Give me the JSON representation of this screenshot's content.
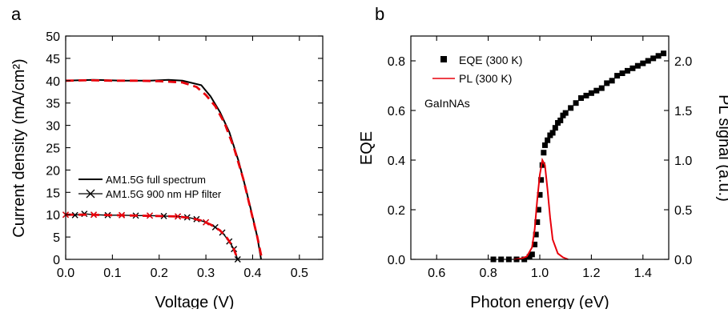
{
  "chart_data": [
    {
      "panel": "a",
      "type": "line",
      "xlabel": "Voltage (V)",
      "ylabel": "Current density (mA/cm²)",
      "xlim": [
        0,
        0.55
      ],
      "ylim": [
        0,
        50
      ],
      "xticks": [
        "0.0",
        "0.1",
        "0.2",
        "0.3",
        "0.4",
        "0.5"
      ],
      "yticks": [
        "0",
        "5",
        "10",
        "15",
        "20",
        "25",
        "30",
        "35",
        "40",
        "45",
        "50"
      ],
      "legend_position": "middle-left",
      "series": [
        {
          "name": "AM1.5G full spectrum",
          "color": "#000000",
          "style": "solid",
          "points": [
            [
              0.0,
              40.0
            ],
            [
              0.06,
              40.2
            ],
            [
              0.12,
              40.0
            ],
            [
              0.18,
              40.0
            ],
            [
              0.22,
              40.2
            ],
            [
              0.25,
              40.0
            ],
            [
              0.29,
              39.0
            ],
            [
              0.31,
              36.5
            ],
            [
              0.33,
              33.0
            ],
            [
              0.35,
              28.5
            ],
            [
              0.37,
              22.0
            ],
            [
              0.385,
              16.0
            ],
            [
              0.4,
              9.5
            ],
            [
              0.41,
              5.0
            ],
            [
              0.418,
              0.0
            ]
          ]
        },
        {
          "name": "AM1.5G 900 nm HP filter",
          "color": "#000000",
          "marker": "x",
          "points": [
            [
              0.0,
              10.0
            ],
            [
              0.02,
              9.9
            ],
            [
              0.04,
              10.2
            ],
            [
              0.06,
              10.0
            ],
            [
              0.09,
              9.9
            ],
            [
              0.12,
              9.9
            ],
            [
              0.15,
              9.8
            ],
            [
              0.18,
              9.8
            ],
            [
              0.21,
              9.7
            ],
            [
              0.24,
              9.6
            ],
            [
              0.26,
              9.4
            ],
            [
              0.28,
              9.0
            ],
            [
              0.3,
              8.3
            ],
            [
              0.32,
              7.2
            ],
            [
              0.335,
              6.0
            ],
            [
              0.35,
              4.0
            ],
            [
              0.36,
              2.3
            ],
            [
              0.368,
              0.0
            ]
          ]
        },
        {
          "color": "#e8000b",
          "style": "dashed",
          "points": [
            [
              0.0,
              40.0
            ],
            [
              0.05,
              40.1
            ],
            [
              0.1,
              40.0
            ],
            [
              0.15,
              40.0
            ],
            [
              0.2,
              39.9
            ],
            [
              0.25,
              39.6
            ],
            [
              0.28,
              38.6
            ],
            [
              0.3,
              36.8
            ],
            [
              0.32,
              34.3
            ],
            [
              0.34,
              30.5
            ],
            [
              0.36,
              25.0
            ],
            [
              0.38,
              18.0
            ],
            [
              0.395,
              11.5
            ],
            [
              0.41,
              5.0
            ],
            [
              0.42,
              0.0
            ]
          ]
        },
        {
          "color": "#e8000b",
          "style": "dashed",
          "points": [
            [
              0.0,
              10.0
            ],
            [
              0.05,
              10.0
            ],
            [
              0.1,
              9.9
            ],
            [
              0.15,
              9.8
            ],
            [
              0.2,
              9.7
            ],
            [
              0.24,
              9.6
            ],
            [
              0.27,
              9.2
            ],
            [
              0.29,
              8.7
            ],
            [
              0.31,
              7.8
            ],
            [
              0.33,
              6.5
            ],
            [
              0.345,
              4.8
            ],
            [
              0.358,
              2.8
            ],
            [
              0.368,
              0.0
            ]
          ]
        },
        {
          "color": "#e8000b",
          "marker": "x",
          "points": [
            [
              0.0,
              10.0
            ],
            [
              0.06,
              10.0
            ],
            [
              0.12,
              9.9
            ],
            [
              0.18,
              9.8
            ],
            [
              0.24,
              9.6
            ],
            [
              0.3,
              8.3
            ]
          ]
        }
      ]
    },
    {
      "panel": "b",
      "type": "scatter",
      "xlabel": "Photon energy (eV)",
      "ylabel": "EQE",
      "y2label": "PL signal (a.u.)",
      "xlim": [
        0.5,
        1.5
      ],
      "ylim": [
        0,
        0.9
      ],
      "y2lim": [
        0,
        2.25
      ],
      "xticks": [
        "0.6",
        "0.8",
        "1.0",
        "1.2",
        "1.4"
      ],
      "yticks": [
        "0.0",
        "0.2",
        "0.4",
        "0.6",
        "0.8"
      ],
      "y2ticks": [
        "0.0",
        "0.5",
        "1.0",
        "1.5",
        "2.0"
      ],
      "annotation": "GaInNAs",
      "legend_position": "top-left",
      "series": [
        {
          "name": "EQE (300 K)",
          "color": "#000000",
          "marker": "square",
          "axis": "left",
          "points": [
            [
              0.82,
              0.0
            ],
            [
              0.85,
              0.0
            ],
            [
              0.88,
              0.0
            ],
            [
              0.91,
              0.0
            ],
            [
              0.94,
              0.0
            ],
            [
              0.96,
              0.01
            ],
            [
              0.97,
              0.02
            ],
            [
              0.98,
              0.06
            ],
            [
              0.985,
              0.1
            ],
            [
              0.99,
              0.15
            ],
            [
              0.995,
              0.2
            ],
            [
              1.0,
              0.26
            ],
            [
              1.005,
              0.32
            ],
            [
              1.01,
              0.38
            ],
            [
              1.015,
              0.43
            ],
            [
              1.02,
              0.46
            ],
            [
              1.03,
              0.48
            ],
            [
              1.04,
              0.5
            ],
            [
              1.05,
              0.51
            ],
            [
              1.06,
              0.53
            ],
            [
              1.07,
              0.55
            ],
            [
              1.08,
              0.56
            ],
            [
              1.09,
              0.58
            ],
            [
              1.1,
              0.59
            ],
            [
              1.12,
              0.61
            ],
            [
              1.14,
              0.63
            ],
            [
              1.16,
              0.65
            ],
            [
              1.18,
              0.66
            ],
            [
              1.2,
              0.67
            ],
            [
              1.22,
              0.68
            ],
            [
              1.24,
              0.69
            ],
            [
              1.26,
              0.71
            ],
            [
              1.28,
              0.72
            ],
            [
              1.3,
              0.74
            ],
            [
              1.32,
              0.75
            ],
            [
              1.34,
              0.76
            ],
            [
              1.36,
              0.77
            ],
            [
              1.38,
              0.78
            ],
            [
              1.4,
              0.79
            ],
            [
              1.42,
              0.8
            ],
            [
              1.44,
              0.81
            ],
            [
              1.46,
              0.82
            ],
            [
              1.48,
              0.83
            ]
          ]
        },
        {
          "name": "PL (300 K)",
          "color": "#e8000b",
          "style": "solid",
          "axis": "right",
          "points": [
            [
              0.9,
              0.0
            ],
            [
              0.93,
              0.01
            ],
            [
              0.95,
              0.03
            ],
            [
              0.97,
              0.12
            ],
            [
              0.98,
              0.3
            ],
            [
              0.99,
              0.6
            ],
            [
              1.0,
              0.85
            ],
            [
              1.01,
              1.0
            ],
            [
              1.02,
              0.95
            ],
            [
              1.03,
              0.7
            ],
            [
              1.04,
              0.42
            ],
            [
              1.05,
              0.2
            ],
            [
              1.07,
              0.06
            ],
            [
              1.09,
              0.02
            ],
            [
              1.11,
              0.0
            ]
          ]
        }
      ]
    }
  ]
}
